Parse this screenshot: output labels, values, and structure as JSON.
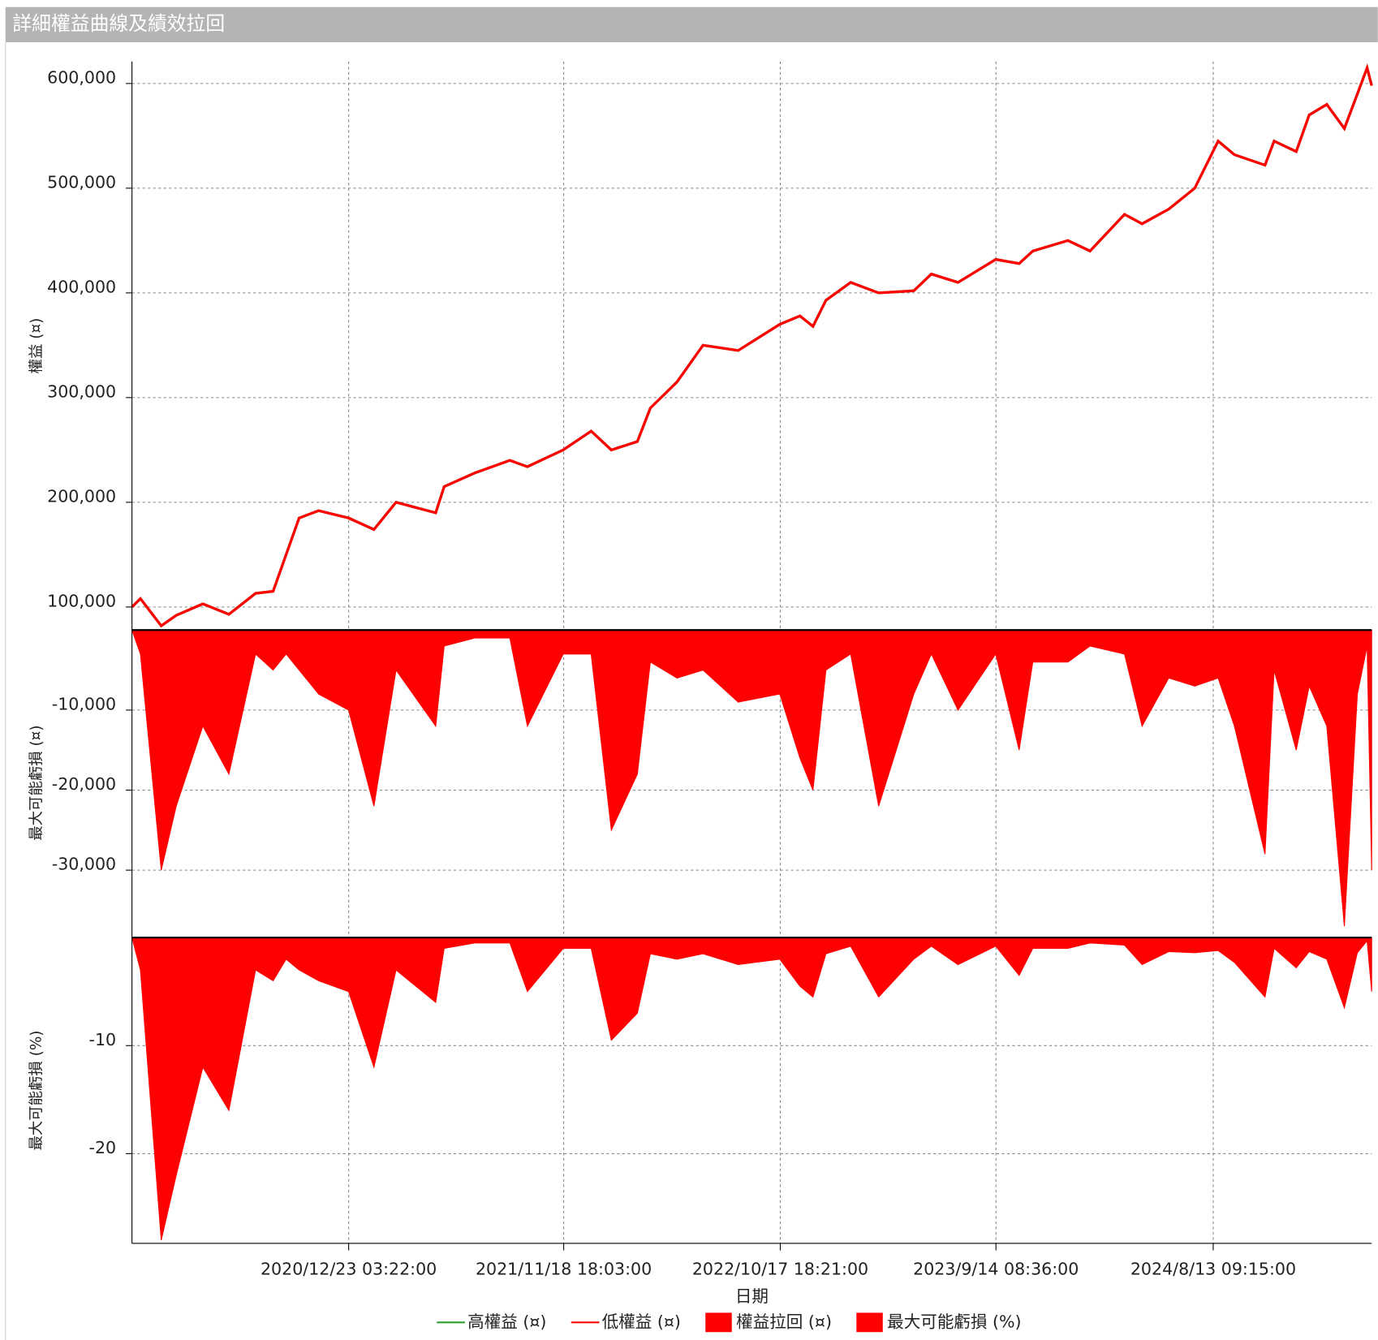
{
  "chart_data": {
    "title": "詳細權益曲線及績效拉回",
    "x_label": "日期",
    "x": [
      "2020/1/25",
      "2020/2/7",
      "2020/3/10",
      "2020/4/2",
      "2020/5/13",
      "2020/6/22",
      "2020/8/2",
      "2020/8/29",
      "2020/9/18",
      "2020/10/8",
      "2020/11/7",
      "2020/12/23",
      "2021/1/31",
      "2021/3/6",
      "2021/5/6",
      "2021/5/19",
      "2021/7/5",
      "2021/8/28",
      "2021/9/24",
      "2021/11/18",
      "2021/12/31",
      "2022/1/31",
      "2022/3/12",
      "2022/4/1",
      "2022/5/12",
      "2022/6/21",
      "2022/8/14",
      "2022/10/17",
      "2022/11/17",
      "2022/12/7",
      "2022/12/27",
      "2023/2/3",
      "2023/3/18",
      "2023/5/11",
      "2023/6/7",
      "2023/7/18",
      "2023/9/14",
      "2023/10/20",
      "2023/11/10",
      "2024/1/3",
      "2024/2/6",
      "2024/3/30",
      "2024/4/26",
      "2024/6/6",
      "2024/7/16",
      "2024/8/21",
      "2024/9/15",
      "2024/11/1",
      "2024/11/15",
      "2024/12/19",
      "2025/1/8",
      "2025/2/4",
      "2025/3/3",
      "2025/3/23",
      "2025/4/7",
      "2025/4/14"
    ],
    "xlim": [
      "2020/1/25",
      "2025/4/14"
    ],
    "xticks": [
      "2020/12/23 03:22:00",
      "2021/11/18 18:03:00",
      "2022/10/17 18:21:00",
      "2023/9/14 08:36:00",
      "2024/8/13 09:15:00"
    ],
    "grid": true,
    "panels": [
      {
        "type": "line",
        "y_label": "權益 (¤)",
        "ylim": [
          78000,
          621000
        ],
        "yticks": [
          {
            "value": 100000,
            "label": "100,000"
          },
          {
            "value": 200000,
            "label": "200,000"
          },
          {
            "value": 300000,
            "label": "300,000"
          },
          {
            "value": 400000,
            "label": "400,000"
          },
          {
            "value": 500000,
            "label": "500,000"
          },
          {
            "value": 600000,
            "label": "600,000"
          }
        ],
        "series": [
          {
            "name": "高權益 (¤)",
            "color": "#2e9e2e",
            "values": [
              100000,
              108000,
              82000,
              92000,
              103000,
              93000,
              113000,
              115000,
              150000,
              185000,
              192000,
              185000,
              174000,
              200000,
              190000,
              215000,
              228000,
              240000,
              234000,
              250000,
              268000,
              250000,
              258000,
              290000,
              315000,
              350000,
              345000,
              370000,
              378000,
              368000,
              393000,
              410000,
              400000,
              402000,
              418000,
              410000,
              432000,
              428000,
              440000,
              450000,
              440000,
              475000,
              466000,
              480000,
              500000,
              545000,
              532000,
              522000,
              545000,
              535000,
              570000,
              580000,
              557000,
              590000,
              615000,
              598000
            ]
          },
          {
            "name": "低權益 (¤)",
            "color": "#ff0000",
            "values": [
              100000,
              108000,
              82000,
              92000,
              103000,
              93000,
              113000,
              115000,
              150000,
              185000,
              192000,
              185000,
              174000,
              200000,
              190000,
              215000,
              228000,
              240000,
              234000,
              250000,
              268000,
              250000,
              258000,
              290000,
              315000,
              350000,
              345000,
              370000,
              378000,
              368000,
              393000,
              410000,
              400000,
              402000,
              418000,
              410000,
              432000,
              428000,
              440000,
              450000,
              440000,
              475000,
              466000,
              480000,
              500000,
              545000,
              532000,
              522000,
              545000,
              535000,
              570000,
              580000,
              557000,
              590000,
              615000,
              598000
            ]
          }
        ]
      },
      {
        "type": "area",
        "y_label": "最大可能虧損 (¤)",
        "ylim": [
          -38200,
          0
        ],
        "yticks": [
          {
            "value": -10000,
            "label": "-10,000"
          },
          {
            "value": -20000,
            "label": "-20,000"
          },
          {
            "value": -30000,
            "label": "-30,000"
          }
        ],
        "series": [
          {
            "name": "權益拉回 (¤)",
            "color": "#ff0000",
            "values": [
              0,
              -3000,
              -30000,
              -22000,
              -12000,
              -18000,
              -3000,
              -5000,
              -3000,
              -5000,
              -8000,
              -10000,
              -22000,
              -5000,
              -12000,
              -2000,
              -1000,
              -1000,
              -12000,
              -3000,
              -3000,
              -25000,
              -18000,
              -4000,
              -6000,
              -5000,
              -9000,
              -8000,
              -16000,
              -20000,
              -5000,
              -3000,
              -22000,
              -8000,
              -3000,
              -10000,
              -3000,
              -15000,
              -4000,
              -4000,
              -2000,
              -3000,
              -12000,
              -6000,
              -7000,
              -6000,
              -12000,
              -28000,
              -5000,
              -15000,
              -7000,
              -12000,
              -37000,
              -8000,
              -2000,
              -30000
            ]
          }
        ]
      },
      {
        "type": "area",
        "y_label": "最大可能虧損 (%)",
        "ylim": [
          -28.3,
          0
        ],
        "yticks": [
          -10,
          -20
        ],
        "series": [
          {
            "name": "最大可能虧損 (%)",
            "color": "#ff0000",
            "values": [
              0,
              -3,
              -28,
              -22,
              -12,
              -16,
              -3,
              -4,
              -2,
              -3,
              -4,
              -5,
              -12,
              -3,
              -6,
              -1,
              -0.5,
              -0.5,
              -5,
              -1,
              -1,
              -9.5,
              -7,
              -1.5,
              -2,
              -1.5,
              -2.5,
              -2,
              -4.5,
              -5.5,
              -1.5,
              -0.8,
              -5.5,
              -2,
              -0.8,
              -2.5,
              -0.8,
              -3.5,
              -1,
              -1,
              -0.5,
              -0.7,
              -2.5,
              -1.3,
              -1.4,
              -1.2,
              -2.3,
              -5.5,
              -1,
              -2.8,
              -1.3,
              -2,
              -6.5,
              -1.4,
              -0.3,
              -5
            ]
          }
        ]
      }
    ]
  }
}
